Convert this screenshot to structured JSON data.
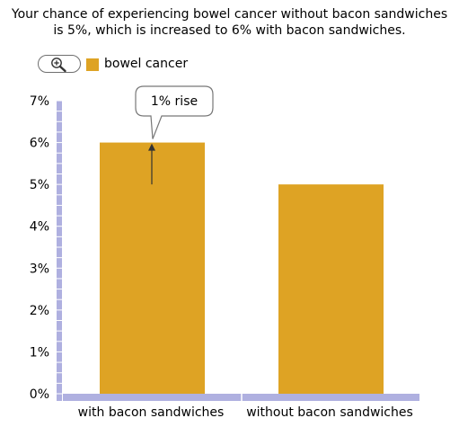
{
  "caption": {
    "line1": "Your chance of experiencing bowel cancer without bacon sandwiches",
    "line2": "is 5%, which is increased to 6% with bacon sandwiches."
  },
  "toolbar": {
    "zoom_icon": "zoom-in-magnifier-icon"
  },
  "colors": {
    "bar": "#DEA324",
    "axis": "#AFB0E0",
    "arrow": "#333333"
  },
  "chart_data": {
    "type": "bar",
    "categories": [
      "with bacon sandwiches",
      "without bacon sandwiches"
    ],
    "series": [
      {
        "name": "bowel cancer",
        "values": [
          6,
          5
        ]
      }
    ],
    "ylim": [
      0,
      7
    ],
    "yticks": [
      "0%",
      "1%",
      "2%",
      "3%",
      "4%",
      "5%",
      "6%",
      "7%"
    ],
    "annotation": {
      "text": "1% rise",
      "category": "with bacon sandwiches",
      "from": 5,
      "to": 6
    },
    "legend": "top-left",
    "grid": false
  }
}
